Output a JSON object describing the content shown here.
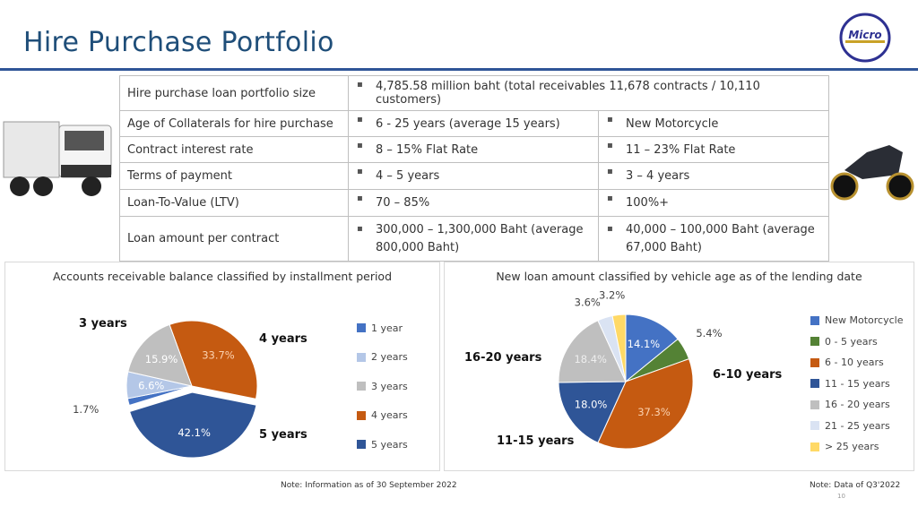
{
  "title": "Hire Purchase Portfolio",
  "logo_text": "Micro",
  "table": [
    [
      "Hire purchase loan portfolio size",
      "4,785.58 million baht (total receivables 11,678 contracts / 10,110 customers)"
    ],
    [
      "Age of Collaterals for hire purchase",
      "6 - 25 years (average 15 years)",
      "New Motorcycle"
    ],
    [
      "Contract interest rate",
      "8 – 15% Flat Rate",
      "11 – 23% Flat Rate"
    ],
    [
      "Terms of payment",
      "4 – 5 years",
      "3 – 4 years"
    ],
    [
      "Loan-To-Value (LTV)",
      "70 – 85%",
      "100%+"
    ],
    [
      "Loan amount per contract",
      "300,000 – 1,300,000 Baht (average 800,000 Baht)",
      "40,000 – 100,000 Baht (average 67,000 Baht)"
    ]
  ],
  "chart_data": [
    {
      "type": "pie",
      "title": "Accounts receivable balance classified by installment period",
      "categories": [
        "1 year",
        "2 years",
        "3 years",
        "4 years",
        "5 years"
      ],
      "values": [
        1.7,
        6.6,
        15.9,
        33.7,
        42.1
      ],
      "labels": [
        "1.7%",
        "6.6%",
        "15.9%",
        "33.7%",
        "42.1%"
      ],
      "colors": [
        "#4472c4",
        "#b4c7e7",
        "#bfbfbf",
        "#c55a11",
        "#2f5597"
      ],
      "annotations": [
        "3 years",
        "4 years",
        "5 years"
      ],
      "legend": "right"
    },
    {
      "type": "pie",
      "title": "New loan amount classified by vehicle age as of the lending date",
      "categories": [
        "New Motorcycle",
        "0 - 5 years",
        "6 - 10 years",
        "11 - 15 years",
        "16 - 20 years",
        "21 - 25 years",
        "> 25 years"
      ],
      "values": [
        14.1,
        5.4,
        37.3,
        18.0,
        18.4,
        3.6,
        3.2
      ],
      "labels": [
        "14.1%",
        "5.4%",
        "37.3%",
        "18.0%",
        "18.4%",
        "3.6%",
        "3.2%"
      ],
      "colors": [
        "#4472c4",
        "#548235",
        "#c55a11",
        "#2f5597",
        "#bfbfbf",
        "#dae3f3",
        "#ffd966"
      ],
      "annotations": [
        "16-20 years",
        "6-10 years",
        "11-15 years"
      ],
      "legend": "right"
    }
  ],
  "notes": {
    "left": "Note: Information as of 30 September 2022",
    "right": "Note: Data of Q3'2022",
    "page": "10"
  }
}
